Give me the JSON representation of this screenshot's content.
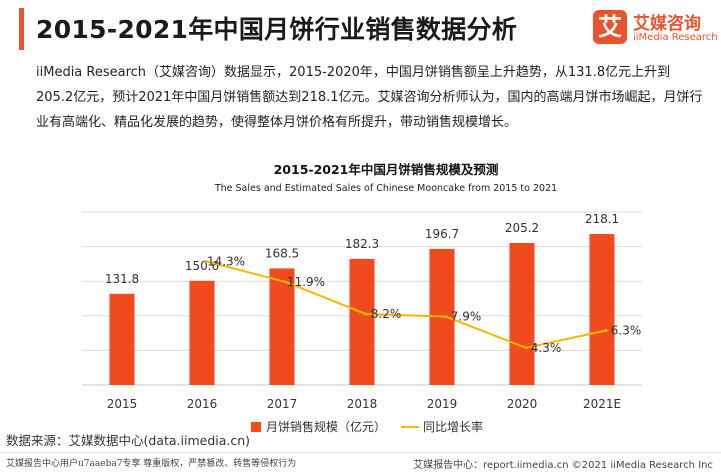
{
  "header": {
    "title": "2015-2021年中国月饼行业销售数据分析",
    "logo_mark": "艾",
    "logo_cn": "艾媒咨询",
    "logo_en": "iiMedia Research"
  },
  "intro": "iiMedia Research（艾媒咨询）数据显示，2015-2020年，中国月饼销售额呈上升趋势，从131.8亿元上升到205.2亿元，预计2021年中国月饼销售额达到218.1亿元。艾媒咨询分析师认为，国内的高端月饼市场崛起，月饼行业有高端化、精品化发展的趋势，使得整体月饼价格有所提升，带动销售规模增长。",
  "chart_data": {
    "type": "bar",
    "title": "2015-2021年中国月饼销售规模及预测",
    "subtitle": "The Sales and Estimated Sales of Chinese Mooncake from 2015 to 2021",
    "categories": [
      "2015",
      "2016",
      "2017",
      "2018",
      "2019",
      "2020",
      "2021E"
    ],
    "series": [
      {
        "name": "月饼销售规模（亿元）",
        "type": "bar",
        "values": [
          131.8,
          150.6,
          168.5,
          182.3,
          196.7,
          205.2,
          218.1
        ],
        "labels": [
          "131.8",
          "150.6",
          "168.5",
          "182.3",
          "196.7",
          "205.2",
          "218.1"
        ],
        "color": "#f04a1f"
      },
      {
        "name": "同比增长率",
        "type": "line",
        "values": [
          null,
          14.3,
          11.9,
          8.2,
          7.9,
          4.3,
          6.3
        ],
        "labels": [
          "",
          "14.3%",
          "11.9%",
          "8.2%",
          "7.9%",
          "4.3%",
          "6.3%"
        ],
        "color": "#f5b800"
      }
    ],
    "ylim": [
      0,
      250
    ],
    "y2lim": [
      0,
      20
    ],
    "grid": true,
    "legend": "bottom"
  },
  "footer": {
    "source": "数据来源：艾媒数据中心(data.iimedia.cn)",
    "left_note": "艾媒报告中心用户u7aaeba7专享 尊重版权，严禁篡改、转售等侵权行为",
    "right_note": "艾媒报告中心：report.iimedia.cn  ©2021  iiMedia Research  Inc"
  },
  "colors": {
    "accent": "#e8542f",
    "bar": "#f04a1f",
    "line": "#f5b800",
    "grid": "#dcdcdc"
  }
}
